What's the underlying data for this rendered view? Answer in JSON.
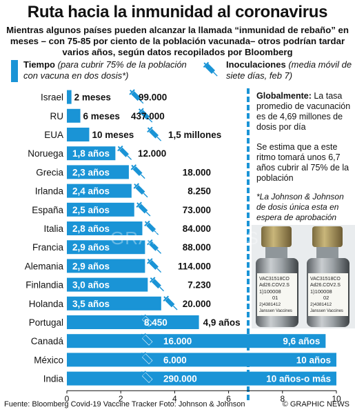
{
  "title": "Ruta hacia la inmunidad al coronavirus",
  "subtitle": "Mientras algunos países pueden alcanzar la llamada “inmunidad de rebaño” en meses – con 75-85 por ciento de la población vacunada– otros podrían tardar varios años, según datos recopilados por Bloomberg",
  "legend": {
    "time_label": "Tiempo",
    "time_note": "(para cubrir 75% de la población con vacuna en dos dosis*)",
    "inoc_label": "Inoculaciones",
    "inoc_note": "(media móvil de siete días, feb 7)"
  },
  "panel": {
    "global_label": "Globalmente:",
    "global_text": "La tasa promedio de vacunación es de 4,69 millones de dosis por día",
    "pace_text": "Se estima que a este ritmo tomará unos 6,7 años cubrir al 75% de la población",
    "note_text": "*La Johnson & Johnson de dosis única esta en espera de aprobación",
    "vial_labels": [
      "VAC31518CO",
      "Ad26.COV2.S",
      "1)100008",
      "01",
      "2)4381412",
      "Janssen Vaccines"
    ],
    "vial_labels_2": [
      "VAC31518CO",
      "Ad26.COV2.S",
      "1)100008",
      "02",
      "2)4381412",
      "Janssen Vaccines"
    ]
  },
  "watermark": "GRAPHIC NEWS",
  "footer": {
    "source": "Fuente: Bloomberg Covid-19 Vaccine Tracker   Foto: Johnson & Johnson",
    "credit": "© GRAPHIC NEWS"
  },
  "colors": {
    "bar": "#1a94d6",
    "syringe": "#1a94d6",
    "label_white": "#ffffff"
  },
  "chart_data": {
    "type": "bar",
    "orientation": "horizontal",
    "categories": [
      "Israel",
      "RU",
      "EUA",
      "Noruega",
      "Grecia",
      "Irlanda",
      "España",
      "Italia",
      "Francia",
      "Alemania",
      "Finlandia",
      "Holanda",
      "Portugal",
      "Canadá",
      "México",
      "India"
    ],
    "series": [
      {
        "name": "Tiempo",
        "values": [
          0.17,
          0.5,
          0.83,
          1.8,
          2.3,
          2.4,
          2.5,
          2.8,
          2.9,
          2.9,
          3.0,
          3.5,
          4.9,
          9.6,
          10,
          10
        ],
        "labels": [
          "2 meses",
          "6 meses",
          "10 meses",
          "1,8 años",
          "2,3 años",
          "2,4 años",
          "2,5 años",
          "2,8 años",
          "2,9 años",
          "2,9 años",
          "3,0 años",
          "3,5 años",
          "4,9 años",
          "9,6 años",
          "10 años",
          "10 años-o más"
        ]
      },
      {
        "name": "Inoculaciones",
        "labels": [
          "99.000",
          "437.000",
          "1,5 millones",
          "12.000",
          "18.000",
          "8.250",
          "73.000",
          "84.000",
          "88.000",
          "114.000",
          "7.230",
          "20.000",
          "8.450",
          "16.000",
          "6.000",
          "290.000"
        ]
      }
    ],
    "xlim": [
      0,
      10
    ],
    "xticks": [
      "0",
      "2",
      "4",
      "6",
      "8",
      "10"
    ],
    "grid": false
  }
}
